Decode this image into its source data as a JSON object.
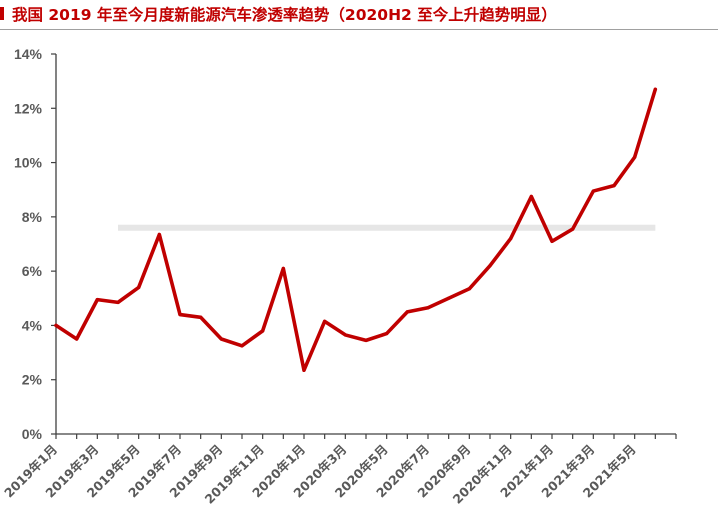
{
  "title": "我国 2019 年至今月度新能源汽车渗透率趋势（2020H2 至今上升趋势明显）",
  "colors": {
    "title": "#c00000",
    "series": "#c00000",
    "axis": "#404040",
    "reference_band": "#e6e6e6",
    "tick_text": "#595959"
  },
  "chart_data": {
    "type": "line",
    "title": "我国 2019 年至今月度新能源汽车渗透率趋势（2020H2 至今上升趋势明显）",
    "xlabel": "",
    "ylabel": "",
    "ylim": [
      0,
      14
    ],
    "y_ticks": [
      0,
      2,
      4,
      6,
      8,
      10,
      12,
      14
    ],
    "y_tick_labels": [
      "0%",
      "2%",
      "4%",
      "6%",
      "8%",
      "10%",
      "12%",
      "14%"
    ],
    "x_tick_labels": [
      "2019年1月",
      "2019年3月",
      "2019年5月",
      "2019年7月",
      "2019年9月",
      "2019年11月",
      "2020年1月",
      "2020年3月",
      "2020年5月",
      "2020年7月",
      "2020年9月",
      "2020年11月",
      "2021年1月",
      "2021年3月",
      "2021年5月"
    ],
    "grid": false,
    "reference_line": {
      "y": 7.6,
      "x_start": "2019年4月",
      "x_end": "2021年6月"
    },
    "x": [
      "2019年1月",
      "2019年2月",
      "2019年3月",
      "2019年4月",
      "2019年5月",
      "2019年6月",
      "2019年7月",
      "2019年8月",
      "2019年9月",
      "2019年10月",
      "2019年11月",
      "2019年12月",
      "2020年1月",
      "2020年2月",
      "2020年3月",
      "2020年4月",
      "2020年5月",
      "2020年6月",
      "2020年7月",
      "2020年8月",
      "2020年9月",
      "2020年10月",
      "2020年11月",
      "2020年12月",
      "2021年1月",
      "2021年2月",
      "2021年3月",
      "2021年4月",
      "2021年5月",
      "2021年6月"
    ],
    "series": [
      {
        "values": [
          4.0,
          3.5,
          4.95,
          4.85,
          5.4,
          7.35,
          4.4,
          4.3,
          3.5,
          3.25,
          3.8,
          6.1,
          2.35,
          4.15,
          3.65,
          3.45,
          3.7,
          4.5,
          4.65,
          5.0,
          5.35,
          6.2,
          7.2,
          8.75,
          7.1,
          7.55,
          8.95,
          9.15,
          10.2,
          12.7
        ]
      }
    ]
  }
}
